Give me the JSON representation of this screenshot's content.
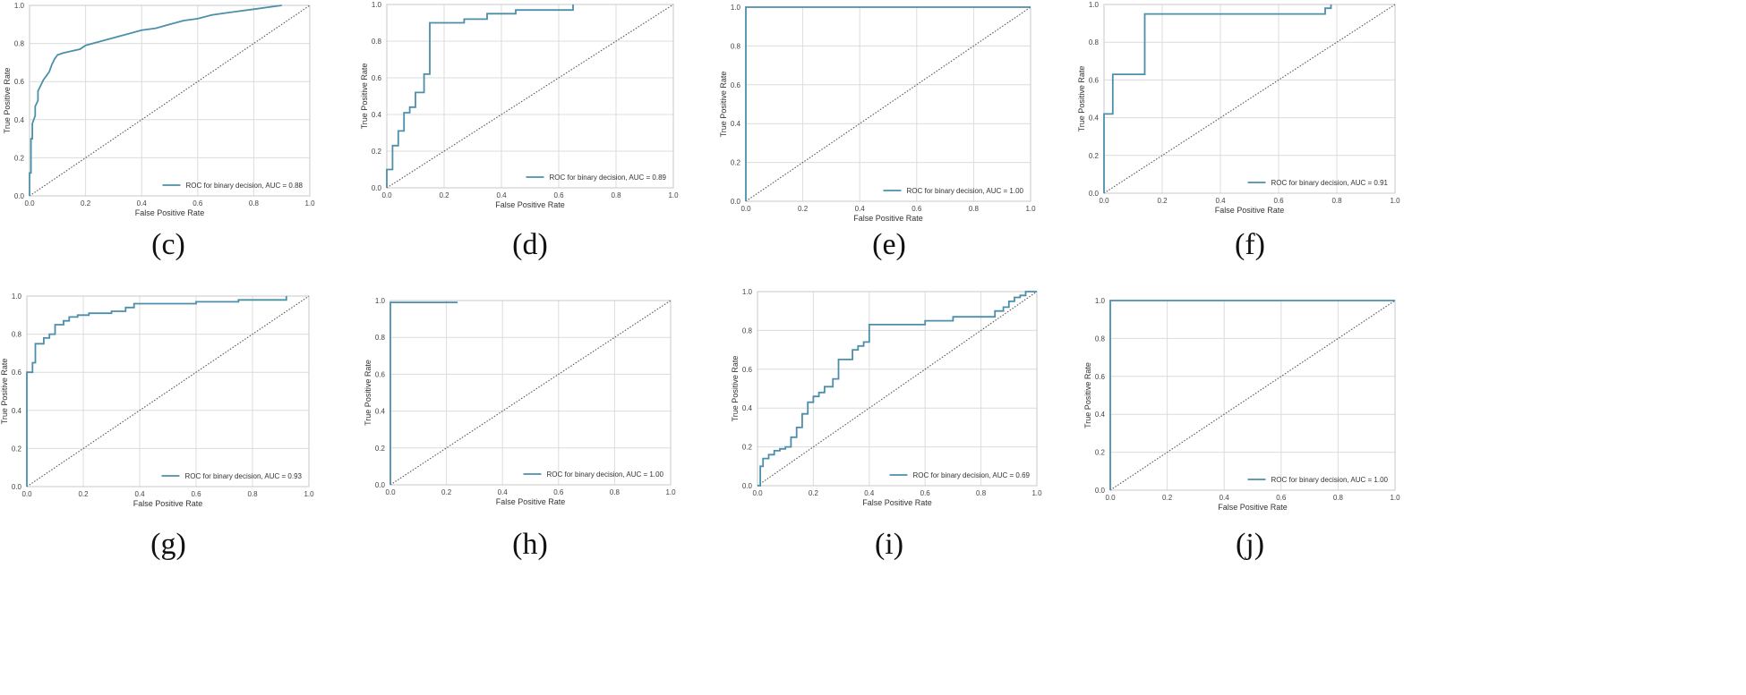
{
  "colors": {
    "roc_line": "#4d8faa",
    "diagonal": "#555555",
    "grid": "#dcdcdc",
    "frame": "#c8c8c8"
  },
  "chart_data": [
    {
      "id": "c",
      "caption": "(c)",
      "type": "line",
      "xlabel": "False Positive Rate",
      "ylabel": "True Positive Rate",
      "xlim": [
        0,
        1
      ],
      "ylim": [
        0,
        1
      ],
      "xticks": [
        "0.0",
        "0.2",
        "0.4",
        "0.6",
        "0.8",
        "1.0"
      ],
      "yticks": [
        "0.0",
        "0.2",
        "0.4",
        "0.6",
        "0.8",
        "1.0"
      ],
      "grid": true,
      "legend_position": "lower-right",
      "series": [
        {
          "name": "ROC for binary decision, AUC = 0.88",
          "x": [
            0,
            0,
            0.005,
            0.005,
            0.01,
            0.01,
            0.02,
            0.02,
            0.03,
            0.03,
            0.04,
            0.05,
            0.06,
            0.07,
            0.08,
            0.09,
            0.1,
            0.12,
            0.15,
            0.18,
            0.2,
            0.25,
            0.3,
            0.35,
            0.4,
            0.45,
            0.5,
            0.55,
            0.6,
            0.65,
            0.7,
            0.75,
            0.8,
            0.85,
            0.9
          ],
          "y": [
            0,
            0.12,
            0.12,
            0.3,
            0.3,
            0.38,
            0.42,
            0.47,
            0.5,
            0.55,
            0.58,
            0.61,
            0.63,
            0.65,
            0.69,
            0.72,
            0.74,
            0.75,
            0.76,
            0.77,
            0.79,
            0.81,
            0.83,
            0.85,
            0.87,
            0.88,
            0.9,
            0.92,
            0.93,
            0.95,
            0.96,
            0.97,
            0.98,
            0.99,
            1.0
          ]
        }
      ]
    },
    {
      "id": "d",
      "caption": "(d)",
      "type": "line",
      "xlabel": "False Positive Rate",
      "ylabel": "True Positive Rate",
      "xlim": [
        0,
        1
      ],
      "ylim": [
        0,
        1
      ],
      "xticks": [
        "0.0",
        "0.2",
        "0.4",
        "0.6",
        "0.8",
        "1.0"
      ],
      "yticks": [
        "0.0",
        "0.2",
        "0.4",
        "0.6",
        "0.8",
        "1.0"
      ],
      "grid": true,
      "legend_position": "lower-right",
      "series": [
        {
          "name": "ROC for binary decision, AUC = 0.89",
          "x": [
            0,
            0,
            0.02,
            0.02,
            0.04,
            0.04,
            0.06,
            0.06,
            0.08,
            0.08,
            0.1,
            0.1,
            0.13,
            0.13,
            0.15,
            0.15,
            0.27,
            0.27,
            0.35,
            0.35,
            0.45,
            0.45,
            0.65,
            0.65
          ],
          "y": [
            0,
            0.1,
            0.1,
            0.23,
            0.23,
            0.31,
            0.31,
            0.41,
            0.41,
            0.44,
            0.44,
            0.52,
            0.52,
            0.62,
            0.62,
            0.9,
            0.9,
            0.92,
            0.92,
            0.95,
            0.95,
            0.97,
            0.97,
            1.0
          ]
        }
      ]
    },
    {
      "id": "e",
      "caption": "(e)",
      "type": "line",
      "xlabel": "False Positive Rate",
      "ylabel": "True Positive Rate",
      "xlim": [
        0,
        1
      ],
      "ylim": [
        0,
        1
      ],
      "xticks": [
        "0.0",
        "0.2",
        "0.4",
        "0.6",
        "0.8",
        "1.0"
      ],
      "yticks": [
        "0.0",
        "0.2",
        "0.4",
        "0.6",
        "0.8",
        "1.0"
      ],
      "grid": true,
      "legend_position": "lower-right",
      "series": [
        {
          "name": "ROC for binary decision, AUC = 1.00",
          "x": [
            0,
            0,
            1
          ],
          "y": [
            0,
            1,
            1
          ]
        }
      ]
    },
    {
      "id": "f",
      "caption": "(f)",
      "type": "line",
      "xlabel": "False Positive Rate",
      "ylabel": "True Positive Rate",
      "xlim": [
        0,
        1
      ],
      "ylim": [
        0,
        1
      ],
      "xticks": [
        "0.0",
        "0.2",
        "0.4",
        "0.6",
        "0.8",
        "1.0"
      ],
      "yticks": [
        "0.0",
        "0.2",
        "0.4",
        "0.6",
        "0.8",
        "1.0"
      ],
      "grid": true,
      "legend_position": "lower-right",
      "series": [
        {
          "name": "ROC for binary decision, AUC = 0.91",
          "x": [
            0,
            0,
            0.03,
            0.03,
            0.14,
            0.14,
            0.76,
            0.76,
            0.78,
            0.78
          ],
          "y": [
            0,
            0.42,
            0.42,
            0.63,
            0.63,
            0.95,
            0.95,
            0.98,
            0.98,
            1.0
          ]
        }
      ]
    },
    {
      "id": "g",
      "caption": "(g)",
      "type": "line",
      "xlabel": "False Positive Rate",
      "ylabel": "True Positive Rate",
      "xlim": [
        0,
        1
      ],
      "ylim": [
        0,
        1
      ],
      "xticks": [
        "0.0",
        "0.2",
        "0.4",
        "0.6",
        "0.8",
        "1.0"
      ],
      "yticks": [
        "0.0",
        "0.2",
        "0.4",
        "0.6",
        "0.8",
        "1.0"
      ],
      "grid": true,
      "legend_position": "lower-right",
      "series": [
        {
          "name": "ROC for binary decision, AUC = 0.93",
          "x": [
            0,
            0,
            0.02,
            0.02,
            0.03,
            0.03,
            0.06,
            0.06,
            0.08,
            0.08,
            0.1,
            0.1,
            0.13,
            0.13,
            0.15,
            0.15,
            0.18,
            0.18,
            0.22,
            0.22,
            0.3,
            0.3,
            0.35,
            0.35,
            0.38,
            0.38,
            0.6,
            0.6,
            0.75,
            0.75,
            0.92,
            0.92
          ],
          "y": [
            0,
            0.6,
            0.6,
            0.65,
            0.65,
            0.75,
            0.75,
            0.78,
            0.78,
            0.8,
            0.8,
            0.85,
            0.85,
            0.87,
            0.87,
            0.89,
            0.89,
            0.9,
            0.9,
            0.91,
            0.91,
            0.92,
            0.92,
            0.94,
            0.94,
            0.96,
            0.96,
            0.97,
            0.97,
            0.98,
            0.98,
            1.0
          ]
        }
      ]
    },
    {
      "id": "h",
      "caption": "(h)",
      "type": "line",
      "xlabel": "False Positive Rate",
      "ylabel": "True Positive Rate",
      "xlim": [
        0,
        1
      ],
      "ylim": [
        0,
        1
      ],
      "xticks": [
        "0.0",
        "0.2",
        "0.4",
        "0.6",
        "0.8",
        "1.0"
      ],
      "yticks": [
        "0.0",
        "0.2",
        "0.4",
        "0.6",
        "0.8",
        "1.0"
      ],
      "grid": true,
      "legend_position": "lower-right",
      "series": [
        {
          "name": "ROC for binary decision, AUC = 1.00",
          "x": [
            0,
            0,
            0.24
          ],
          "y": [
            0,
            0.99,
            0.99
          ]
        }
      ]
    },
    {
      "id": "i",
      "caption": "(i)",
      "type": "line",
      "xlabel": "False Positive Rate",
      "ylabel": "True Positive Rate",
      "xlim": [
        0,
        1
      ],
      "ylim": [
        0,
        1
      ],
      "xticks": [
        "0.0",
        "0.2",
        "0.4",
        "0.6",
        "0.8",
        "1.0"
      ],
      "yticks": [
        "0.0",
        "0.2",
        "0.4",
        "0.6",
        "0.8",
        "1.0"
      ],
      "grid": true,
      "legend_position": "lower-right",
      "series": [
        {
          "name": "ROC for binary decision, AUC = 0.69",
          "x": [
            0,
            0.01,
            0.01,
            0.02,
            0.02,
            0.04,
            0.04,
            0.06,
            0.06,
            0.08,
            0.08,
            0.1,
            0.1,
            0.12,
            0.12,
            0.14,
            0.14,
            0.16,
            0.16,
            0.18,
            0.18,
            0.2,
            0.2,
            0.22,
            0.22,
            0.24,
            0.24,
            0.27,
            0.27,
            0.29,
            0.29,
            0.34,
            0.34,
            0.36,
            0.36,
            0.38,
            0.38,
            0.4,
            0.4,
            0.6,
            0.6,
            0.7,
            0.7,
            0.85,
            0.85,
            0.88,
            0.88,
            0.9,
            0.9,
            0.92,
            0.92,
            0.94,
            0.94,
            0.96,
            0.96,
            1.0
          ],
          "y": [
            0,
            0,
            0.1,
            0.1,
            0.14,
            0.14,
            0.16,
            0.16,
            0.18,
            0.18,
            0.19,
            0.19,
            0.2,
            0.2,
            0.25,
            0.25,
            0.3,
            0.3,
            0.37,
            0.37,
            0.43,
            0.43,
            0.46,
            0.46,
            0.48,
            0.48,
            0.51,
            0.51,
            0.55,
            0.55,
            0.65,
            0.65,
            0.7,
            0.7,
            0.72,
            0.72,
            0.74,
            0.74,
            0.83,
            0.83,
            0.85,
            0.85,
            0.87,
            0.87,
            0.9,
            0.9,
            0.92,
            0.92,
            0.95,
            0.95,
            0.97,
            0.97,
            0.98,
            0.98,
            1.0,
            1.0
          ]
        }
      ]
    },
    {
      "id": "j",
      "caption": "(j)",
      "type": "line",
      "xlabel": "False Positive Rate",
      "ylabel": "True Positive Rate",
      "xlim": [
        0,
        1
      ],
      "ylim": [
        0,
        1
      ],
      "xticks": [
        "0.0",
        "0.2",
        "0.4",
        "0.6",
        "0.8",
        "1.0"
      ],
      "yticks": [
        "0.0",
        "0.2",
        "0.4",
        "0.6",
        "0.8",
        "1.0"
      ],
      "grid": true,
      "legend_position": "lower-right",
      "series": [
        {
          "name": "ROC for binary decision, AUC = 1.00",
          "x": [
            0,
            0,
            1
          ],
          "y": [
            0,
            1,
            1
          ]
        }
      ]
    }
  ]
}
